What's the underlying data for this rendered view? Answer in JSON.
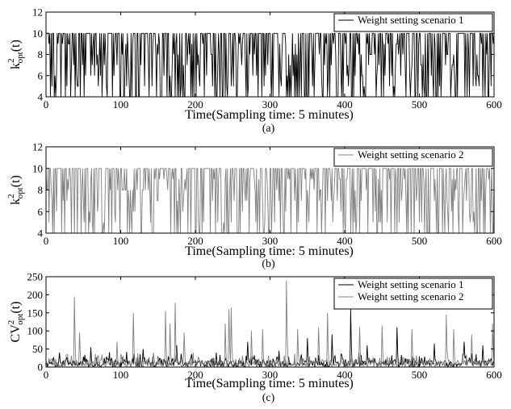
{
  "chart_data": [
    {
      "type": "line",
      "panel_caption": "(a)",
      "xlabel": "Time(Sampling time: 5 minutes)",
      "ylabel": {
        "base": "k",
        "sup": "2",
        "sub": "opt",
        "arg": "(t)"
      },
      "xlim": [
        0,
        600
      ],
      "ylim": [
        4,
        12
      ],
      "xticks": [
        0,
        100,
        200,
        300,
        400,
        500,
        600
      ],
      "yticks": [
        4,
        6,
        8,
        10,
        12
      ],
      "grid": false,
      "legend_position": "top-right",
      "values_note": "discrete optimal k per sample, values in {4..10}",
      "series": [
        {
          "name": "Weight setting scenario 1",
          "color": "#000000",
          "seed": 11,
          "levels": [
            4,
            5,
            6,
            7,
            8,
            9,
            10
          ],
          "n_samples": 600
        }
      ]
    },
    {
      "type": "line",
      "panel_caption": "(b)",
      "xlabel": "Time(Sampling time: 5 minutes)",
      "ylabel": {
        "base": "k",
        "sup": "2",
        "sub": "opt",
        "arg": "(t)"
      },
      "xlim": [
        0,
        600
      ],
      "ylim": [
        4,
        12
      ],
      "xticks": [
        0,
        100,
        200,
        300,
        400,
        500,
        600
      ],
      "yticks": [
        4,
        6,
        8,
        10,
        12
      ],
      "grid": false,
      "legend_position": "top-right",
      "series": [
        {
          "name": "Weight setting scenario 2",
          "color": "#808080",
          "seed": 29,
          "levels": [
            4,
            5,
            6,
            7,
            8,
            9,
            10
          ],
          "n_samples": 600
        }
      ]
    },
    {
      "type": "line",
      "panel_caption": "(c)",
      "xlabel": "Time(Sampling time: 5 minutes)",
      "ylabel": {
        "base": "CV",
        "sup": "2",
        "sub": "opt",
        "arg": "(t)"
      },
      "xlim": [
        0,
        600
      ],
      "ylim": [
        0,
        250
      ],
      "xticks": [
        0,
        100,
        200,
        300,
        400,
        500,
        600
      ],
      "yticks": [
        0,
        50,
        100,
        150,
        200,
        250
      ],
      "grid": false,
      "legend_position": "top-right",
      "series": [
        {
          "name": "Weight setting scenario 1",
          "color": "#000000",
          "seed": 7,
          "n_samples": 600,
          "peaks": [
            [
              18,
              40
            ],
            [
              60,
              55
            ],
            [
              130,
              50
            ],
            [
              175,
              60
            ],
            [
              228,
              40
            ],
            [
              270,
              70
            ],
            [
              312,
              45
            ],
            [
              350,
              80
            ],
            [
              383,
              90
            ],
            [
              408,
              160
            ],
            [
              430,
              60
            ],
            [
              470,
              110
            ],
            [
              520,
              65
            ],
            [
              560,
              70
            ],
            [
              585,
              60
            ]
          ]
        },
        {
          "name": "Weight setting scenario 2",
          "color": "#808080",
          "seed": 53,
          "n_samples": 600,
          "peaks": [
            [
              38,
              195
            ],
            [
              45,
              95
            ],
            [
              95,
              70
            ],
            [
              117,
              150
            ],
            [
              160,
              155
            ],
            [
              166,
              120
            ],
            [
              173,
              178
            ],
            [
              185,
              95
            ],
            [
              240,
              120
            ],
            [
              245,
              160
            ],
            [
              248,
              165
            ],
            [
              275,
              100
            ],
            [
              290,
              105
            ],
            [
              322,
              240
            ],
            [
              337,
              105
            ],
            [
              365,
              110
            ],
            [
              377,
              150
            ],
            [
              420,
              110
            ],
            [
              450,
              115
            ],
            [
              490,
              105
            ],
            [
              536,
              145
            ],
            [
              546,
              105
            ],
            [
              570,
              90
            ],
            [
              598,
              120
            ]
          ]
        }
      ]
    }
  ]
}
